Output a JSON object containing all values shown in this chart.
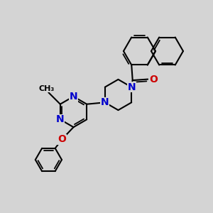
{
  "bg_color": "#d4d4d4",
  "bond_color": "#000000",
  "N_color": "#0000cc",
  "O_color": "#cc0000",
  "lw": 1.5,
  "fs": 8.5,
  "xlim": [
    0,
    10
  ],
  "ylim": [
    0,
    10
  ],
  "naph_r": 0.75,
  "ring_r": 0.72,
  "ph_r": 0.62
}
